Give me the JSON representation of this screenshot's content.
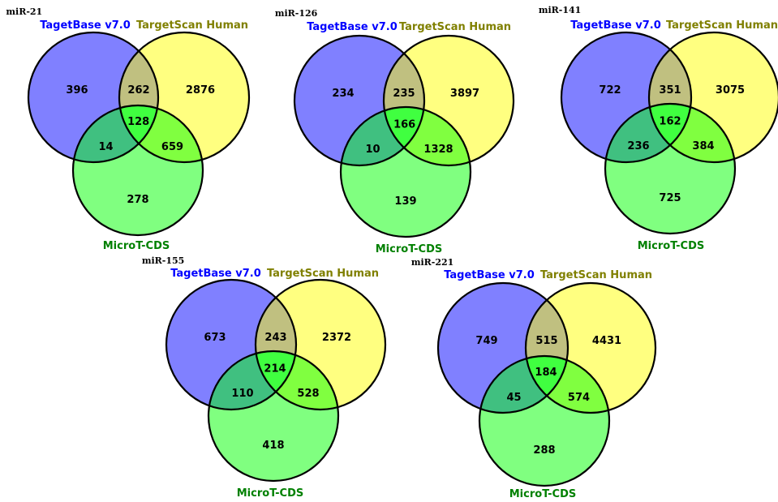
{
  "colors": {
    "tagetbase": "#8080ff",
    "targetscan": "#ffff80",
    "microt": "#80ff80",
    "tb_ts": "#c0c080",
    "tb_mt": "#40c080",
    "ts_mt": "#80ff40",
    "all": "#40ff40",
    "label_tagetbase": "#0000ff",
    "label_targetscan": "#808000",
    "label_microt": "#008000"
  },
  "set_labels": {
    "tagetbase": "TagetBase v7.0",
    "targetscan": "TargetScan Human",
    "microt": "MicroT-CDS"
  },
  "diagrams": [
    {
      "mirna": "miR-21",
      "counts": {
        "tb_only": "396",
        "ts_only": "2876",
        "mt_only": "278",
        "tb_ts": "262",
        "tb_mt": "14",
        "ts_mt": "659",
        "all": "128"
      }
    },
    {
      "mirna": "miR-126",
      "counts": {
        "tb_only": "234",
        "ts_only": "3897",
        "mt_only": "139",
        "tb_ts": "235",
        "tb_mt": "10",
        "ts_mt": "1328",
        "all": "166"
      }
    },
    {
      "mirna": "miR-141",
      "counts": {
        "tb_only": "722",
        "ts_only": "3075",
        "mt_only": "725",
        "tb_ts": "351",
        "tb_mt": "236",
        "ts_mt": "384",
        "all": "162"
      }
    },
    {
      "mirna": "miR-155",
      "counts": {
        "tb_only": "673",
        "ts_only": "2372",
        "mt_only": "418",
        "tb_ts": "243",
        "tb_mt": "110",
        "ts_mt": "528",
        "all": "214"
      }
    },
    {
      "mirna": "miR-221",
      "counts": {
        "tb_only": "749",
        "ts_only": "4431",
        "mt_only": "288",
        "tb_ts": "515",
        "tb_mt": "45",
        "ts_mt": "574",
        "all": "184"
      }
    }
  ]
}
